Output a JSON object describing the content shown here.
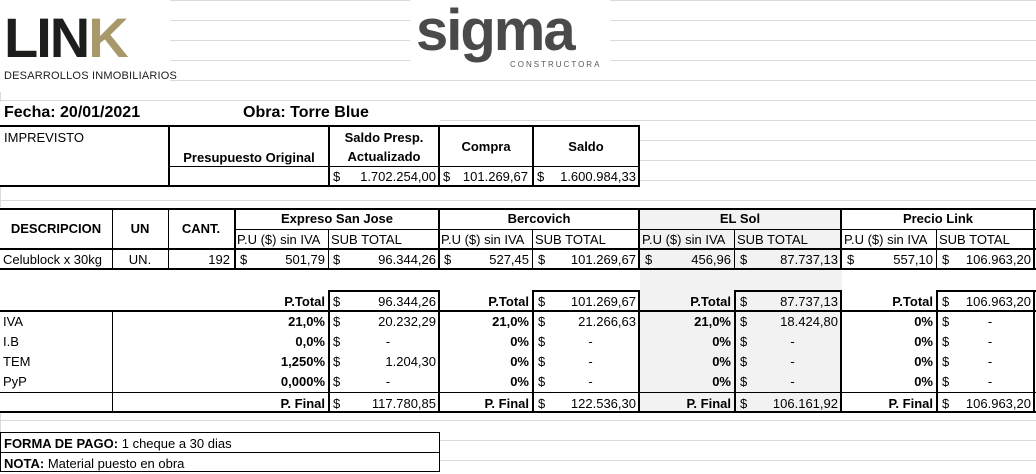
{
  "logos": {
    "link": "LIN",
    "link_k": "K",
    "link_sub": "DESARROLLOS INMOBILIARIOS",
    "sigma": "sigma",
    "sigma_sub": "CONSTRUCTORA"
  },
  "header": {
    "fecha": "Fecha: 20/01/2021",
    "obra": "Obra: Torre Blue"
  },
  "summary": {
    "label": "IMPREVISTO",
    "h1": "Presupuesto Original",
    "h2a": "Saldo Presp.",
    "h2b": "Actualizado",
    "h3": "Compra",
    "h4": "Saldo",
    "v2": "1.702.254,00",
    "v3": "101.269,67",
    "v4": "1.600.984,33"
  },
  "currency": "$",
  "table": {
    "h_desc": "DESCRIPCION",
    "h_un": "UN",
    "h_cant": "CANT.",
    "suppliers": [
      "Expreso San Jose",
      "Bercovich",
      "EL Sol",
      "Precio Link"
    ],
    "sub_pu": "P.U ($) sin IVA",
    "sub_st": "SUB TOTAL",
    "item": {
      "desc": "Celublock x 30kg",
      "un": "UN.",
      "cant": "192",
      "vals": [
        [
          "501,79",
          "96.344,26"
        ],
        [
          "527,45",
          "101.269,67"
        ],
        [
          "456,96",
          "87.737,13"
        ],
        [
          "557,10",
          "106.963,20"
        ]
      ]
    },
    "ptotal_label": "P.Total",
    "ptotal": [
      "96.344,26",
      "101.269,67",
      "87.737,13",
      "106.963,20"
    ],
    "rows": [
      {
        "label": "IVA",
        "pct": [
          "21,0%",
          "21,0%",
          "21,0%",
          "0%"
        ],
        "val": [
          "20.232,29",
          "21.266,63",
          "18.424,80",
          "-"
        ]
      },
      {
        "label": "I.B",
        "pct": [
          "0,0%",
          "0%",
          "0%",
          "0%"
        ],
        "val": [
          "-",
          "-",
          "-",
          "-"
        ]
      },
      {
        "label": "TEM",
        "pct": [
          "1,250%",
          "0%",
          "0%",
          "0%"
        ],
        "val": [
          "1.204,30",
          "-",
          "-",
          "-"
        ]
      },
      {
        "label": "PyP",
        "pct": [
          "0,000%",
          "0%",
          "0%",
          "0%"
        ],
        "val": [
          "-",
          "-",
          "-",
          "-"
        ]
      }
    ],
    "pfinal_label": "P. Final",
    "pfinal": [
      "117.780,85",
      "122.536,30",
      "106.161,92",
      "106.963,20"
    ]
  },
  "footer": {
    "pago_label": "FORMA DE PAGO:",
    "pago": "1 cheque a 30 dias",
    "nota_label": "NOTA:",
    "nota": "Material puesto en obra"
  }
}
